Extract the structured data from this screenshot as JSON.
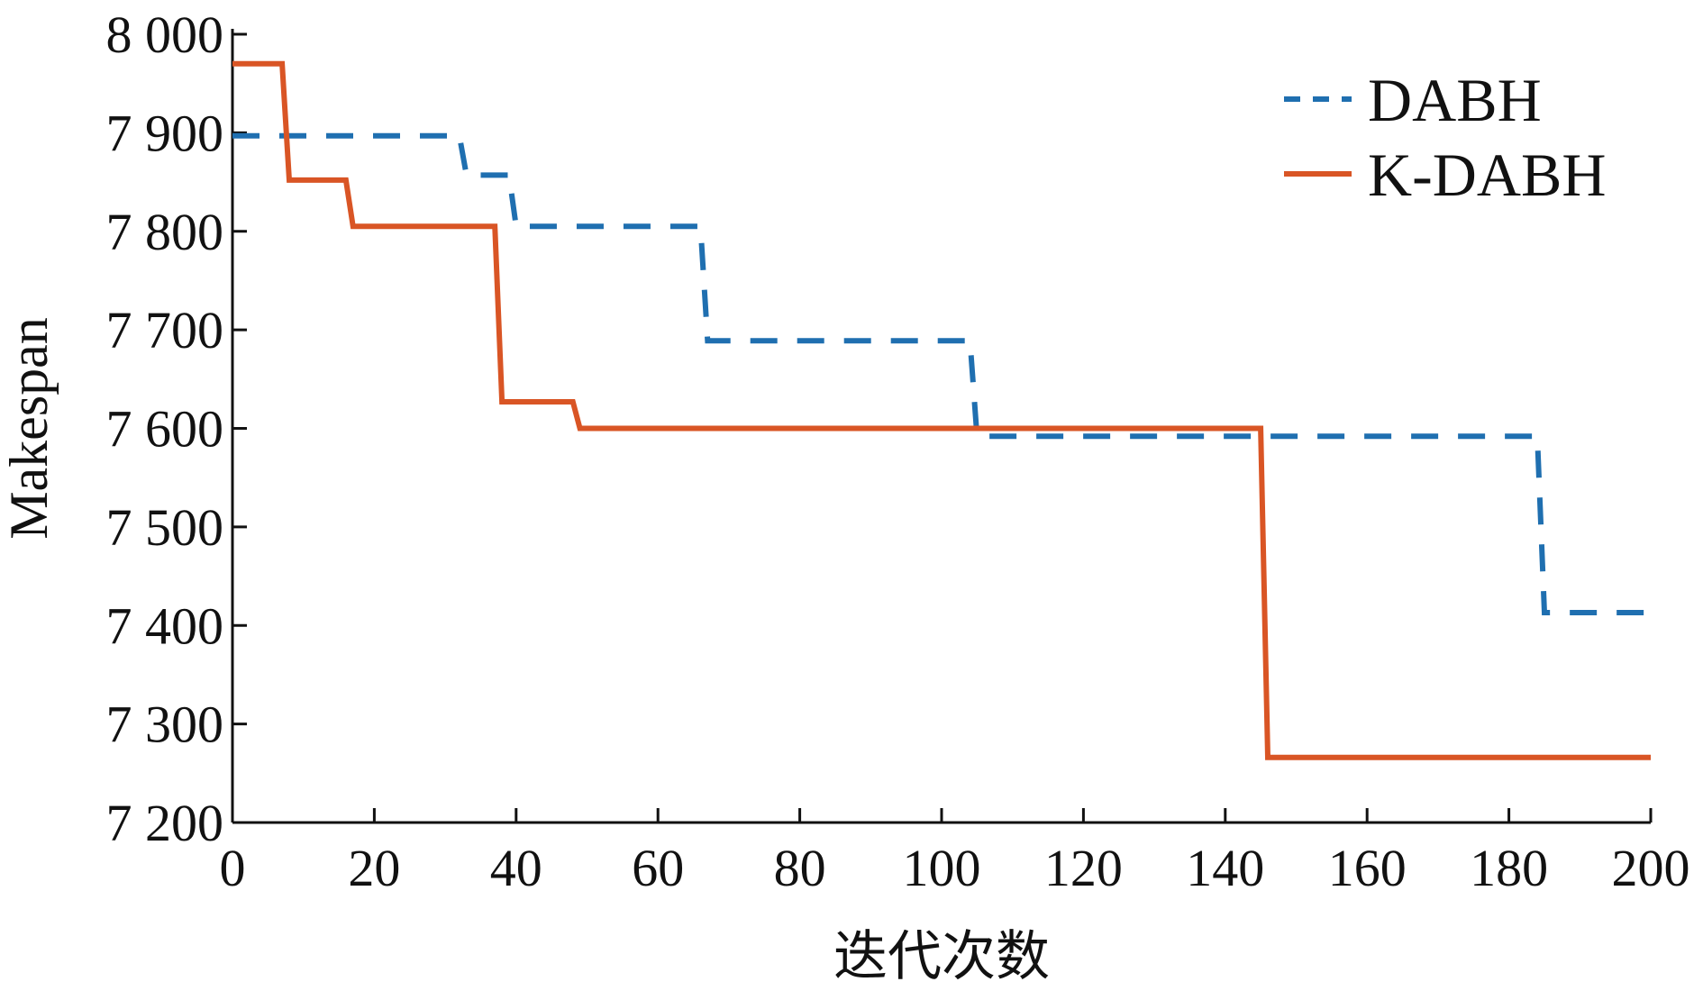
{
  "chart_data": {
    "type": "line",
    "title": "",
    "xlabel": "迭代次数",
    "ylabel": "Makespan",
    "xlim": [
      0,
      200
    ],
    "ylim": [
      7200,
      8000
    ],
    "xticks": [
      0,
      20,
      40,
      60,
      80,
      100,
      120,
      140,
      160,
      180,
      200
    ],
    "yticks": [
      7200,
      7300,
      7400,
      7500,
      7600,
      7700,
      7800,
      7900,
      8000
    ],
    "xtick_labels": [
      "0",
      "20",
      "40",
      "60",
      "80",
      "100",
      "120",
      "140",
      "160",
      "180",
      "200"
    ],
    "ytick_labels": [
      "7 200",
      "7 300",
      "7 400",
      "7 500",
      "7 600",
      "7 700",
      "7 800",
      "7 900",
      "8 000"
    ],
    "grid": false,
    "legend_position": "top-right",
    "series": [
      {
        "name": "DABH",
        "color": "#1f6fb0",
        "style": "dashed",
        "points": [
          [
            0,
            7897
          ],
          [
            32,
            7897
          ],
          [
            33,
            7857
          ],
          [
            39,
            7857
          ],
          [
            40,
            7805
          ],
          [
            66,
            7805
          ],
          [
            67,
            7689
          ],
          [
            104,
            7689
          ],
          [
            105,
            7592
          ],
          [
            184,
            7592
          ],
          [
            185,
            7413
          ],
          [
            200,
            7413
          ]
        ]
      },
      {
        "name": "K-DABH",
        "color": "#d95525",
        "style": "solid",
        "points": [
          [
            0,
            7970
          ],
          [
            7,
            7970
          ],
          [
            8,
            7852
          ],
          [
            16,
            7852
          ],
          [
            17,
            7805
          ],
          [
            37,
            7805
          ],
          [
            38,
            7627
          ],
          [
            48,
            7627
          ],
          [
            49,
            7600
          ],
          [
            145,
            7600
          ],
          [
            146,
            7266
          ],
          [
            200,
            7266
          ]
        ]
      }
    ]
  }
}
